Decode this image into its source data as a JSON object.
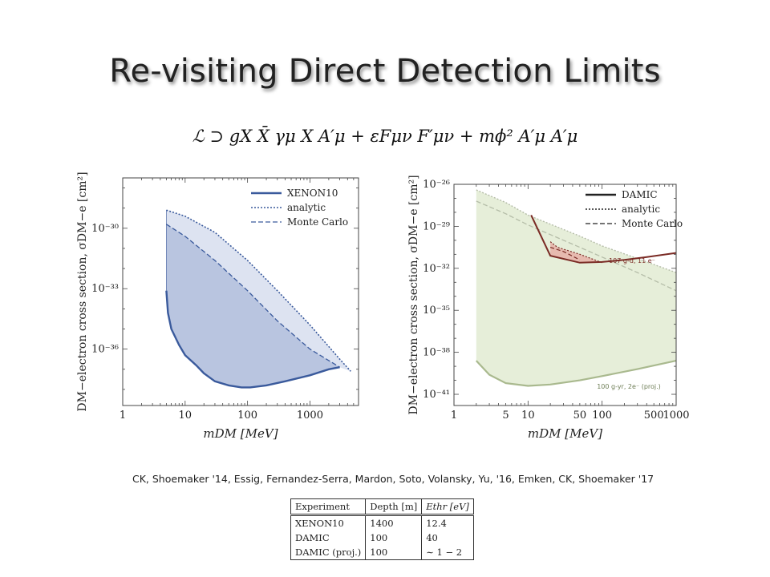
{
  "slide": {
    "title": "Re-visiting Direct Detection Limits",
    "lagrangian": "ℒ ⊃ gX X̄ γμ X A′μ + εFμν F′μν + mϕ² A′μ A′μ",
    "citation": "CK, Shoemaker '14, Essig, Fernandez-Serra, Mardon, Soto, Volansky, Yu, '16,  Emken, CK, Shoemaker '17"
  },
  "table": {
    "headers": [
      "Experiment",
      "Depth [m]",
      "Ethr [eV]"
    ],
    "rows": [
      [
        "XENON10",
        "1400",
        "12.4"
      ],
      [
        "DAMIC",
        "100",
        "40"
      ],
      [
        "DAMIC (proj.)",
        "100",
        "∼ 1 − 2"
      ]
    ]
  },
  "colors": {
    "xenon_line": "#3a5a9c",
    "xenon_fill": "#b9c5e0",
    "xenon_fill_light": "#dde3f1",
    "damic_line": "#7a2a24",
    "damic_fill": "#e7a8a0",
    "green_fill": "#e6eed9",
    "green_line": "#a9b98e",
    "green_dash": "#b5bda8"
  },
  "chart_data": [
    {
      "type": "line",
      "xlabel": "mDM [MeV]",
      "ylabel": "DM−electron cross section, σDM−e [cm²]",
      "xscale": "log",
      "yscale": "log",
      "xlim": [
        1,
        6000
      ],
      "ylim": [
        -38.8,
        -27.5
      ],
      "xticks": [
        1,
        10,
        100,
        1000
      ],
      "xtick_labels": [
        "1",
        "10",
        "100",
        "1000"
      ],
      "yticks": [
        -30,
        -33,
        -36
      ],
      "ytick_labels": [
        "10⁻³⁰",
        "10⁻³³",
        "10⁻³⁶"
      ],
      "legend_position": "top-right",
      "series": [
        {
          "name": "XENON10",
          "style": "solid",
          "x": [
            5,
            5.3,
            6,
            8,
            10,
            15,
            20,
            30,
            50,
            80,
            110,
            200,
            400,
            1000,
            2000,
            3000
          ],
          "y": [
            -33.1,
            -34.2,
            -35.0,
            -35.8,
            -36.3,
            -36.8,
            -37.2,
            -37.6,
            -37.8,
            -37.9,
            -37.9,
            -37.8,
            -37.6,
            -37.3,
            -37.0,
            -36.9
          ]
        },
        {
          "name": "analytic",
          "style": "dotted",
          "x": [
            5,
            10,
            30,
            100,
            300,
            1000,
            3000,
            4500
          ],
          "y": [
            -29.1,
            -29.4,
            -30.2,
            -31.6,
            -33.1,
            -34.8,
            -36.5,
            -37.1
          ]
        },
        {
          "name": "Monte Carlo",
          "style": "dashed",
          "x": [
            5,
            10,
            30,
            100,
            300,
            1000,
            3000
          ],
          "y": [
            -29.8,
            -30.4,
            -31.6,
            -33.1,
            -34.6,
            -36.0,
            -36.9
          ]
        }
      ]
    },
    {
      "type": "line",
      "xlabel": "mDM [MeV]",
      "ylabel": "DM−electron cross section, σDM−e [cm²]",
      "xscale": "log",
      "yscale": "log",
      "xlim": [
        1,
        1000
      ],
      "ylim": [
        -41.8,
        -26
      ],
      "xticks": [
        1,
        5,
        10,
        50,
        100,
        500,
        1000
      ],
      "xtick_labels": [
        "1",
        "5",
        "10",
        "50",
        "100",
        "500",
        "1000"
      ],
      "yticks": [
        -26,
        -29,
        -32,
        -35,
        -38,
        -41
      ],
      "ytick_labels": [
        "10⁻²⁶",
        "10⁻²⁹",
        "10⁻³²",
        "10⁻³⁵",
        "10⁻³⁸",
        "10⁻⁴¹"
      ],
      "legend_position": "top-right",
      "annotations": [
        "107 g-d, 11 e⁻",
        "100 g-yr, 2e⁻ (proj.)"
      ],
      "series": [
        {
          "name": "DAMIC",
          "style": "solid",
          "x": [
            11,
            20,
            50,
            100,
            200,
            400,
            1000
          ],
          "y": [
            -28.2,
            -31.1,
            -31.6,
            -31.55,
            -31.4,
            -31.2,
            -30.9
          ]
        },
        {
          "name": "analytic",
          "style": "dotted",
          "x": [
            20,
            25,
            50,
            100
          ],
          "y": [
            -30.1,
            -30.5,
            -31.0,
            -31.6
          ]
        },
        {
          "name": "Monte Carlo",
          "style": "dashed",
          "x": [
            20,
            30,
            50
          ],
          "y": [
            -30.5,
            -30.8,
            -31.4
          ]
        },
        {
          "name": "",
          "style": "light-dotted",
          "x": [
            2,
            5,
            10,
            50,
            100,
            300,
            1000
          ],
          "y": [
            -26.4,
            -27.3,
            -28.2,
            -29.7,
            -30.4,
            -31.3,
            -32.3
          ]
        },
        {
          "name": "",
          "style": "light-dashed",
          "x": [
            2,
            5,
            10,
            50,
            100,
            300,
            1000
          ],
          "y": [
            -27.2,
            -28.1,
            -28.9,
            -30.5,
            -31.2,
            -32.3,
            -33.6
          ]
        },
        {
          "name": "",
          "style": "light-solid",
          "x": [
            2,
            3,
            5,
            10,
            20,
            50,
            100,
            300,
            1000
          ],
          "y": [
            -38.6,
            -39.6,
            -40.2,
            -40.4,
            -40.3,
            -40.0,
            -39.7,
            -39.2,
            -38.6
          ]
        }
      ]
    }
  ]
}
